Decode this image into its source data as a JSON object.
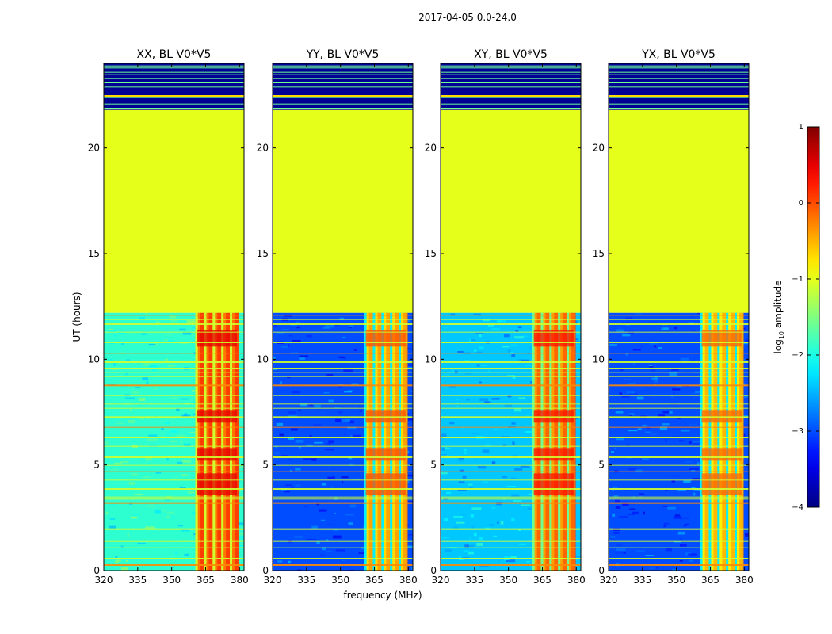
{
  "chart_data": {
    "type": "heatmap",
    "suptitle": "2017-04-05 0.0-24.0",
    "xlabel": "frequency (MHz)",
    "ylabel": "UT (hours)",
    "xlim": [
      320,
      382
    ],
    "ylim": [
      0,
      24
    ],
    "xticks": [
      "320",
      "335",
      "350",
      "365",
      "380"
    ],
    "xtick_values": [
      320,
      335,
      350,
      365,
      380
    ],
    "yticks": [
      "0",
      "5",
      "10",
      "15",
      "20"
    ],
    "ytick_values": [
      0,
      5,
      10,
      15,
      20
    ],
    "panels": [
      {
        "title": "XX, BL V0*V5",
        "bg_level": -1.9,
        "hot_level": -0.2
      },
      {
        "title": "YY, BL V0*V5",
        "bg_level": -3.0,
        "hot_level": -0.7
      },
      {
        "title": "XY, BL V0*V5",
        "bg_level": -2.4,
        "hot_level": -0.4
      },
      {
        "title": "YX, BL V0*V5",
        "bg_level": -3.0,
        "hot_level": -0.8
      }
    ],
    "gap": {
      "start_hour": 12.2,
      "end_hour": 21.8,
      "level": -1.0
    },
    "rfi_band_mhz": [
      360.5,
      379.5
    ],
    "colorbar": {
      "label": "log10 amplitude",
      "label_main": "log",
      "label_sub": "10",
      "label_tail": " amplitude",
      "range": [
        -4,
        1
      ],
      "ticks": [
        "1",
        "0",
        "−1",
        "−2",
        "−3",
        "−4"
      ],
      "tick_values": [
        1,
        0,
        -1,
        -2,
        -3,
        -4
      ],
      "colormap": "jet"
    }
  }
}
